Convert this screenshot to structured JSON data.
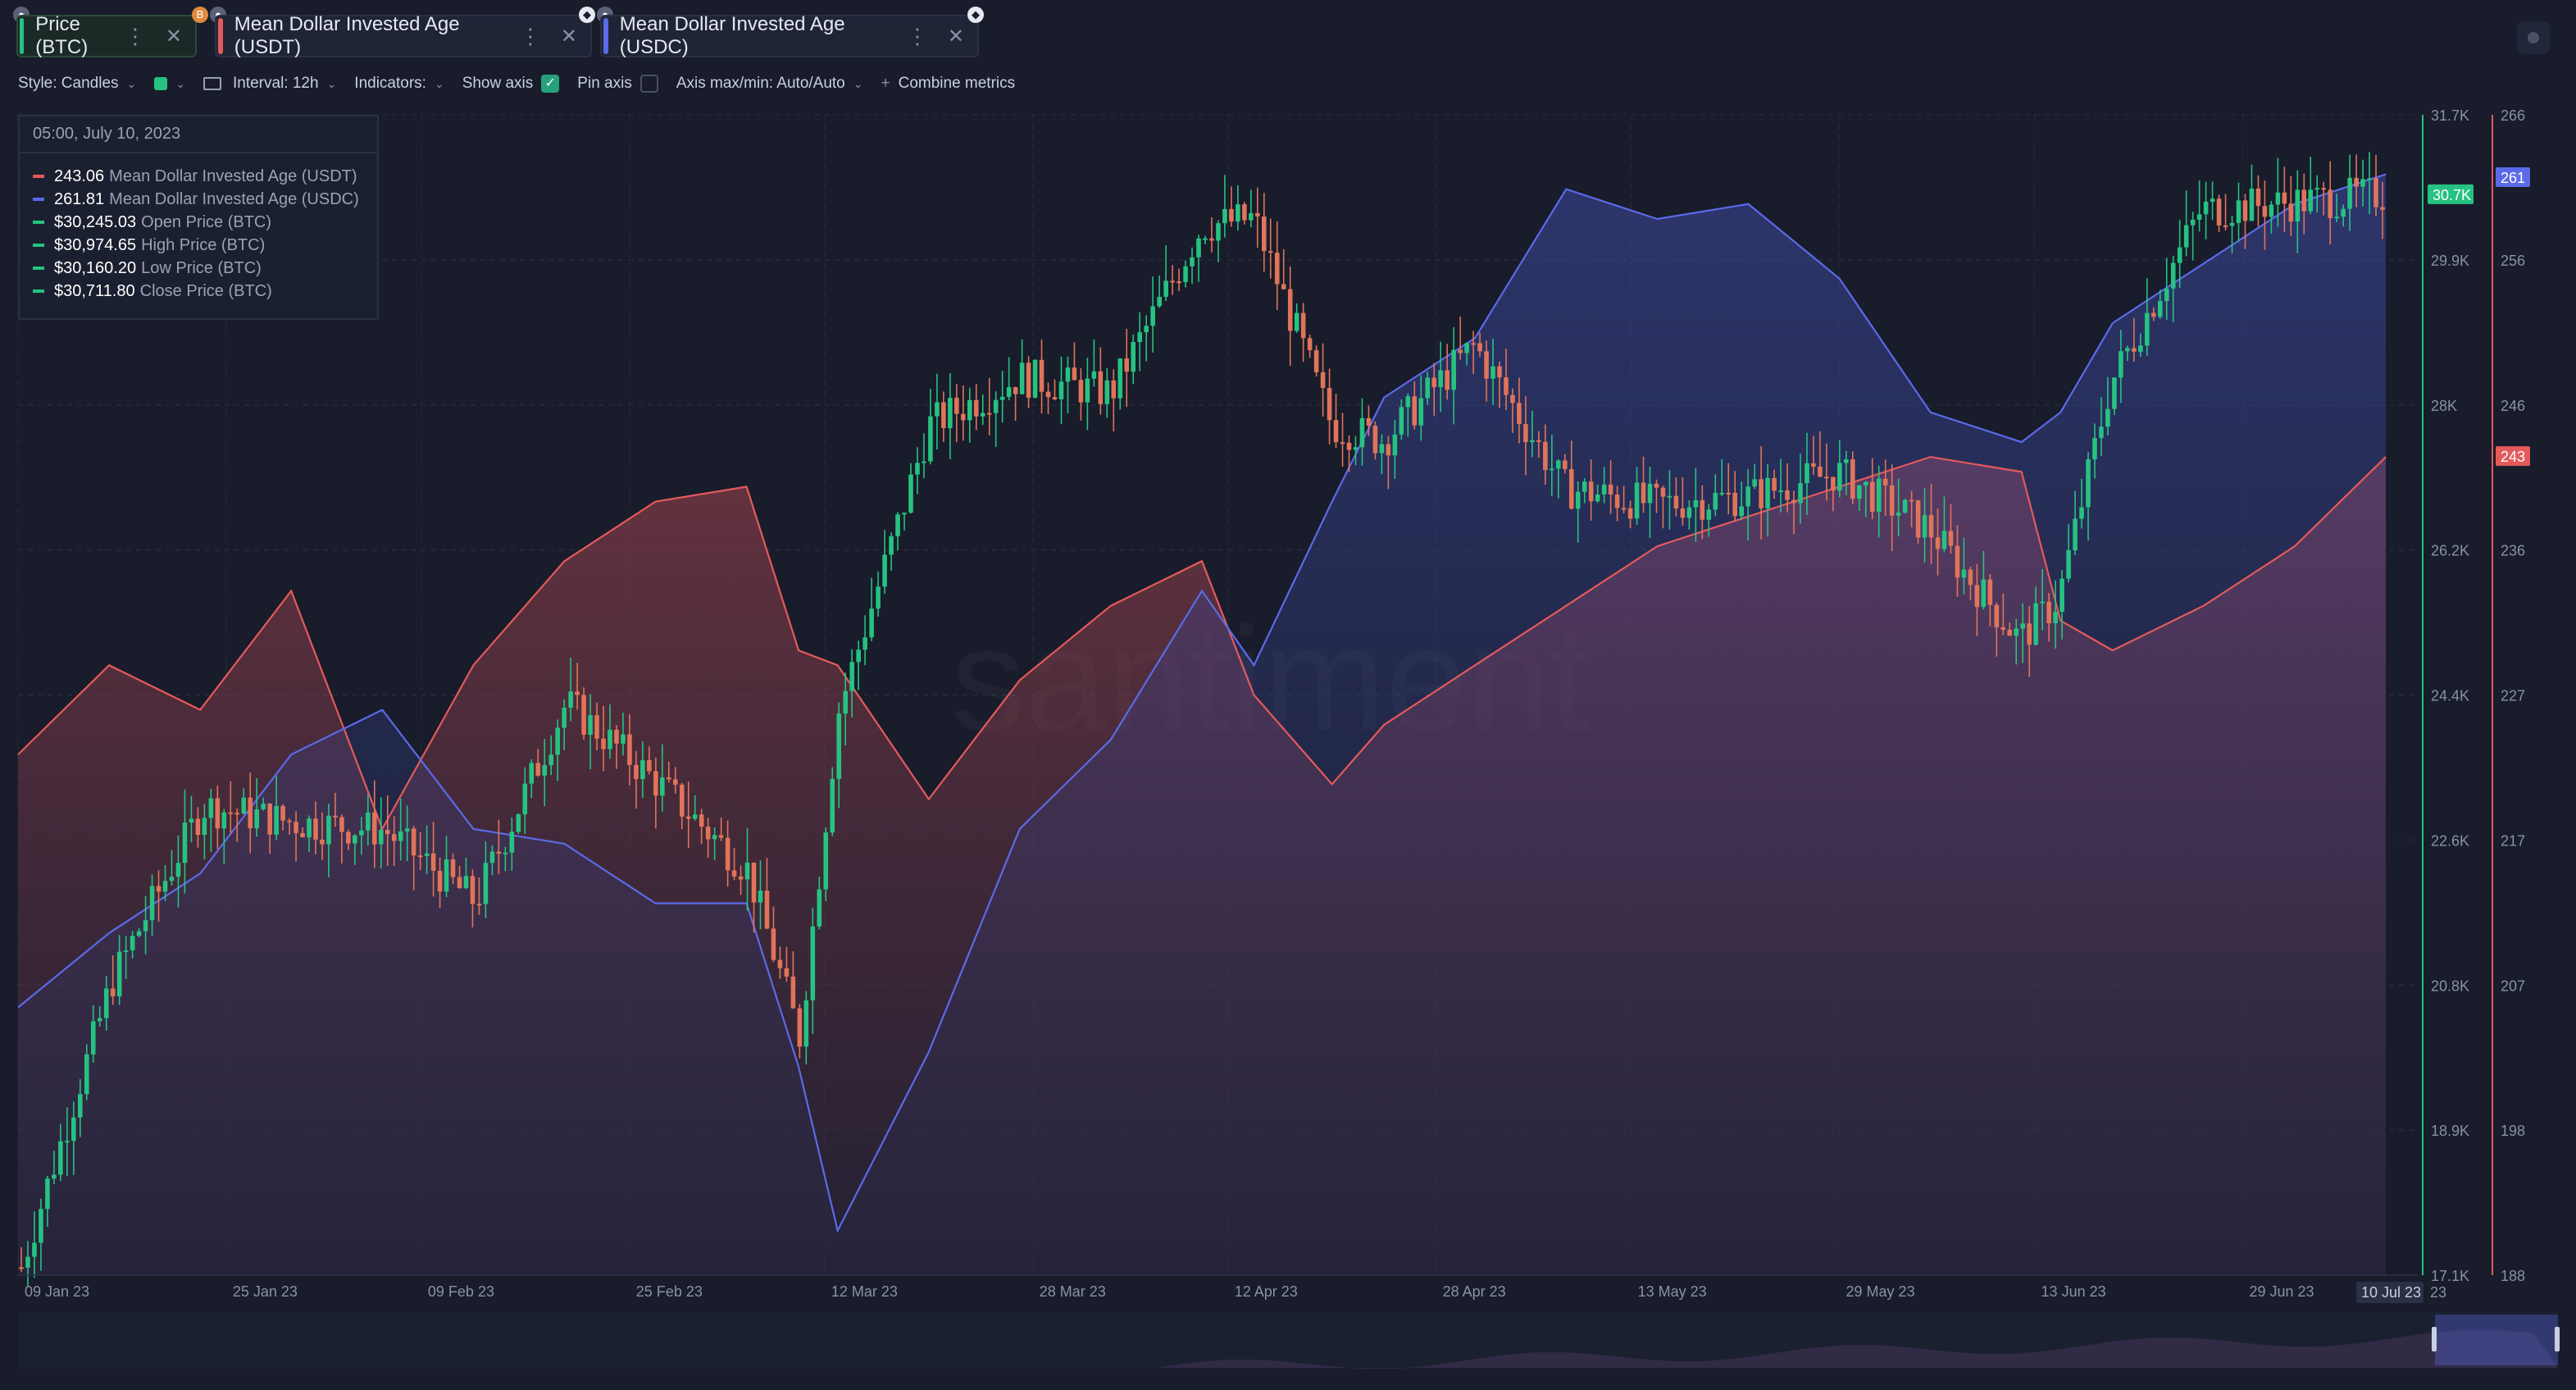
{
  "tabs": [
    {
      "label": "Price (BTC)",
      "color": "#26c281",
      "badge": "B"
    },
    {
      "label": "Mean Dollar Invested Age (USDT)",
      "color": "#e45a5a"
    },
    {
      "label": "Mean Dollar Invested Age (USDC)",
      "color": "#5b6ae8"
    }
  ],
  "toolbar": {
    "style": "Style: Candles",
    "interval": "Interval: 12h",
    "indicators": "Indicators:",
    "show_axis": "Show axis",
    "pin_axis": "Pin axis",
    "axis_maxmin": "Axis max/min: Auto/Auto",
    "combine": "Combine metrics"
  },
  "legend": {
    "date": "05:00, July 10, 2023",
    "rows": [
      {
        "value": "243.06",
        "label": "Mean Dollar Invested Age (USDT)",
        "color": "#e45a5a"
      },
      {
        "value": "261.81",
        "label": "Mean Dollar Invested Age (USDC)",
        "color": "#5b6ae8"
      },
      {
        "value": "$30,245.03",
        "label": "Open Price (BTC)",
        "color": "#26c281"
      },
      {
        "value": "$30,974.65",
        "label": "High Price (BTC)",
        "color": "#26c281"
      },
      {
        "value": "$30,160.20",
        "label": "Low Price (BTC)",
        "color": "#26c281"
      },
      {
        "value": "$30,711.80",
        "label": "Close Price (BTC)",
        "color": "#26c281"
      }
    ]
  },
  "watermark": "santiment",
  "chart_data": {
    "type": "line",
    "x_ticks": [
      "09 Jan 23",
      "25 Jan 23",
      "09 Feb 23",
      "25 Feb 23",
      "12 Mar 23",
      "28 Mar 23",
      "12 Apr 23",
      "28 Apr 23",
      "13 May 23",
      "29 May 23",
      "13 Jun 23",
      "29 Jun 23"
    ],
    "x_end_label": "10 Jul 23",
    "x_end_suffix": "23",
    "price_axis": {
      "ticks": [
        "31.7K",
        "29.9K",
        "28K",
        "26.2K",
        "24.4K",
        "22.6K",
        "20.8K",
        "18.9K",
        "17.1K"
      ],
      "ylim": [
        17100,
        31700
      ],
      "current": "30.7K"
    },
    "age_axis": {
      "ticks": [
        "266",
        "256",
        "246",
        "236",
        "227",
        "217",
        "207",
        "198",
        "188"
      ],
      "ylim": [
        188,
        266
      ],
      "current_usdc": "261",
      "current_usdt": "243"
    },
    "dates": [
      "2023-01-09",
      "2023-01-16",
      "2023-01-23",
      "2023-01-30",
      "2023-02-06",
      "2023-02-13",
      "2023-02-20",
      "2023-02-27",
      "2023-03-06",
      "2023-03-10",
      "2023-03-13",
      "2023-03-20",
      "2023-03-27",
      "2023-04-03",
      "2023-04-10",
      "2023-04-14",
      "2023-04-20",
      "2023-04-24",
      "2023-05-01",
      "2023-05-08",
      "2023-05-15",
      "2023-05-22",
      "2023-05-29",
      "2023-06-05",
      "2023-06-12",
      "2023-06-15",
      "2023-06-19",
      "2023-06-26",
      "2023-07-03",
      "2023-07-10"
    ],
    "series": [
      {
        "name": "Mean Dollar Invested Age (USDT)",
        "color": "#e45a5a",
        "values": [
          223,
          229,
          226,
          234,
          218,
          229,
          236,
          240,
          241,
          230,
          229,
          220,
          228,
          233,
          236,
          227,
          221,
          225,
          229,
          233,
          237,
          239,
          241,
          243,
          242,
          232,
          230,
          233,
          237,
          243
        ]
      },
      {
        "name": "Mean Dollar Invested Age (USDC)",
        "color": "#5b6ae8",
        "values": [
          206,
          211,
          215,
          223,
          226,
          218,
          217,
          213,
          213,
          202,
          191,
          203,
          218,
          224,
          234,
          229,
          240,
          247,
          251,
          261,
          259,
          260,
          255,
          246,
          244,
          246,
          252,
          256,
          260,
          262
        ]
      },
      {
        "name": "Price (BTC)",
        "color": "#26c281",
        "values": [
          17200,
          20800,
          23000,
          22800,
          22700,
          21800,
          24300,
          23300,
          22200,
          20100,
          24200,
          27800,
          28400,
          28200,
          30300,
          30400,
          27800,
          27600,
          28800,
          27000,
          26800,
          26900,
          27200,
          26500,
          25100,
          25600,
          28300,
          30500,
          30600,
          30700
        ]
      }
    ]
  }
}
